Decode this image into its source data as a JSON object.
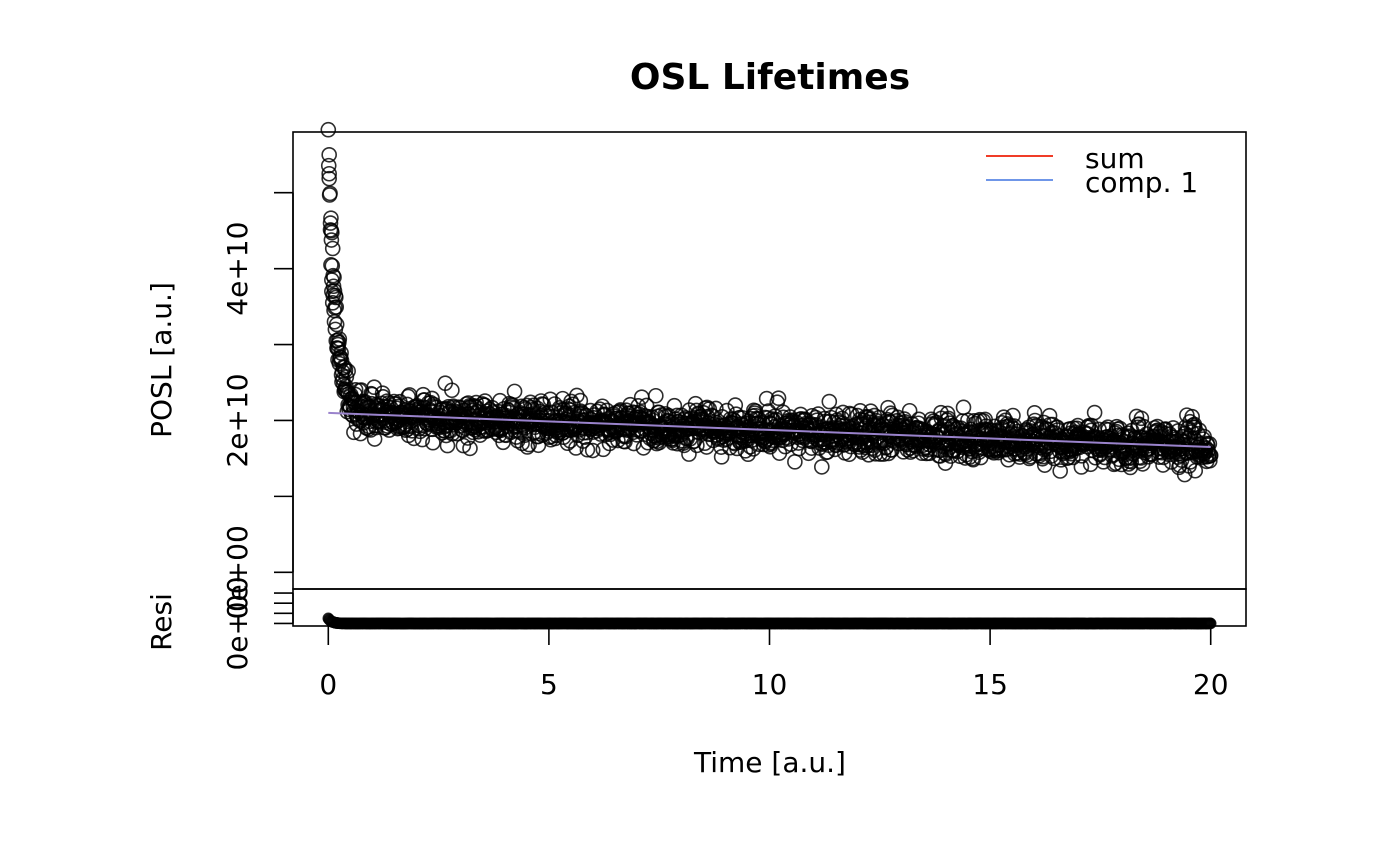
{
  "chart_data": {
    "type": "scatter",
    "title": "OSL Lifetimes",
    "xlabel": "Time [a.u.]",
    "ylabel": "POSL [a.u.]",
    "residual_ylabel": "Resi",
    "xlim": [
      -0.8,
      20.8
    ],
    "ylim": [
      -2200000000.0,
      58000000000.0
    ],
    "residual_ylim": [
      -5000000000.0,
      68000000000.0
    ],
    "xticks": [
      0,
      5,
      10,
      15,
      20
    ],
    "xtick_labels": [
      "0",
      "5",
      "10",
      "15",
      "20"
    ],
    "yticks": [
      0,
      10000000000,
      20000000000,
      30000000000,
      40000000000,
      50000000000
    ],
    "ytick_labels": [
      "0e+00",
      "",
      "2e+10",
      "",
      "4e+10",
      ""
    ],
    "residual_yticks": [
      0,
      20000000000,
      40000000000,
      60000000000
    ],
    "residual_ytick_labels": [
      "0e+00",
      "",
      "",
      ""
    ],
    "grid": false,
    "legend_position": "top-right",
    "legend": [
      {
        "label": "sum",
        "color": "#f03c28"
      },
      {
        "label": "comp. 1",
        "color": "#6f96e8"
      }
    ],
    "series": [
      {
        "name": "sum",
        "kind": "line",
        "color": "#9a83cc",
        "x": [
          0,
          20
        ],
        "y": [
          21000000000,
          16500000000
        ]
      }
    ],
    "points": {
      "x_start": 0,
      "x_end": 20,
      "count": 2000,
      "baseline_start": 21000000000,
      "baseline_end": 16500000000,
      "initial_peak": 57000000000,
      "decay_constant": 0.17,
      "noise": 1400000000,
      "early_points": [
        [
          0.02,
          55000000000
        ],
        [
          0.02,
          52500000000
        ],
        [
          0.05,
          46000000000
        ],
        [
          0.07,
          45000000000
        ],
        [
          0.06,
          40500000000
        ],
        [
          0.08,
          38500000000
        ],
        [
          0.08,
          37000000000
        ],
        [
          0.11,
          36500000000
        ],
        [
          0.1,
          35500000000
        ],
        [
          0.13,
          34500000000
        ],
        [
          0.14,
          33000000000
        ],
        [
          0.16,
          32000000000
        ],
        [
          0.18,
          30500000000
        ],
        [
          0.2,
          29500000000
        ],
        [
          0.22,
          28000000000
        ],
        [
          0.25,
          27500000000
        ],
        [
          0.3,
          26000000000
        ],
        [
          0.37,
          27000000000
        ],
        [
          0.45,
          26500000000
        ],
        [
          0.4,
          24500000000
        ]
      ]
    },
    "residual_points": {
      "x_start": 0,
      "x_end": 20,
      "initial_peak": 10000000000,
      "decay_constant": 0.08
    }
  }
}
